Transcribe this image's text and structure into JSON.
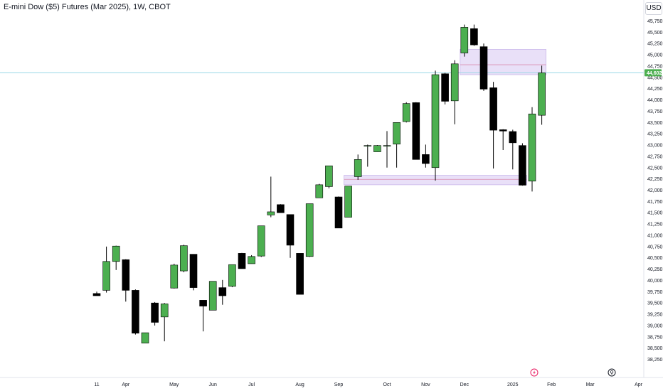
{
  "header": {
    "title": "E-mini Dow ($5) Futures (Mar 2025), 1W, CBOT",
    "currency": "USD"
  },
  "colors": {
    "up": "#4caf50",
    "down": "#000000",
    "wick": "#000000",
    "zone_fill": "#e1d5f5",
    "zone_stroke": "#c9b6ea",
    "zone_mid": "#d98db0",
    "price_line": "#9ad7e6",
    "price_label_bg": "#4caf50"
  },
  "icons": {
    "lightning": "lightning-icon",
    "bulb": "bulb-icon"
  },
  "chart_data": {
    "type": "candlestick",
    "ylim": [
      38250,
      45900
    ],
    "y_ticks": [
      "45,750",
      "45,500",
      "45,250",
      "45,000",
      "44,750",
      "44,500",
      "44,250",
      "44,000",
      "43,750",
      "43,500",
      "43,250",
      "43,000",
      "42,750",
      "42,500",
      "42,250",
      "42,000",
      "41,750",
      "41,500",
      "41,250",
      "41,000",
      "40,750",
      "40,500",
      "40,250",
      "40,000",
      "39,750",
      "39,500",
      "39,250",
      "39,000",
      "38,750",
      "38,500",
      "38,250"
    ],
    "x_labels": [
      {
        "label": "11",
        "index": 0
      },
      {
        "label": "Apr",
        "index": 3
      },
      {
        "label": "May",
        "index": 8
      },
      {
        "label": "Jun",
        "index": 12
      },
      {
        "label": "Jul",
        "index": 16
      },
      {
        "label": "Aug",
        "index": 21
      },
      {
        "label": "Sep",
        "index": 25
      },
      {
        "label": "Oct",
        "index": 30
      },
      {
        "label": "Nov",
        "index": 34
      },
      {
        "label": "Dec",
        "index": 38
      },
      {
        "label": "2025",
        "index": 43
      },
      {
        "label": "Feb",
        "index": 47
      },
      {
        "label": "Mar",
        "index": 51
      },
      {
        "label": "Apr",
        "index": 56
      }
    ],
    "current_price": "44,602",
    "current_price_value": 44602,
    "candles": [
      {
        "o": 39710,
        "h": 39750,
        "l": 39670,
        "c": 39660
      },
      {
        "o": 39780,
        "h": 40750,
        "l": 39730,
        "c": 40420
      },
      {
        "o": 40420,
        "h": 40770,
        "l": 40230,
        "c": 40760
      },
      {
        "o": 40460,
        "h": 40470,
        "l": 39530,
        "c": 39780
      },
      {
        "o": 39780,
        "h": 39800,
        "l": 38800,
        "c": 38830
      },
      {
        "o": 38610,
        "h": 38840,
        "l": 38610,
        "c": 38840
      },
      {
        "o": 39500,
        "h": 39520,
        "l": 39000,
        "c": 39070
      },
      {
        "o": 39190,
        "h": 39500,
        "l": 38650,
        "c": 39480
      },
      {
        "o": 39830,
        "h": 40370,
        "l": 39820,
        "c": 40340
      },
      {
        "o": 40210,
        "h": 40790,
        "l": 40180,
        "c": 40770
      },
      {
        "o": 40580,
        "h": 40580,
        "l": 39780,
        "c": 39840
      },
      {
        "o": 39560,
        "h": 39560,
        "l": 38870,
        "c": 39430
      },
      {
        "o": 39340,
        "h": 39980,
        "l": 39340,
        "c": 39980
      },
      {
        "o": 39840,
        "h": 40010,
        "l": 39460,
        "c": 39660
      },
      {
        "o": 39870,
        "h": 40350,
        "l": 39850,
        "c": 40350
      },
      {
        "o": 40600,
        "h": 40610,
        "l": 40260,
        "c": 40260
      },
      {
        "o": 40370,
        "h": 40560,
        "l": 40370,
        "c": 40530
      },
      {
        "o": 40540,
        "h": 41210,
        "l": 40520,
        "c": 41210
      },
      {
        "o": 41450,
        "h": 42300,
        "l": 41400,
        "c": 41520
      },
      {
        "o": 41680,
        "h": 41690,
        "l": 41510,
        "c": 41500
      },
      {
        "o": 41460,
        "h": 41460,
        "l": 40500,
        "c": 40780
      },
      {
        "o": 40600,
        "h": 40600,
        "l": 39690,
        "c": 39690
      },
      {
        "o": 40530,
        "h": 41700,
        "l": 40520,
        "c": 41700
      },
      {
        "o": 41830,
        "h": 42140,
        "l": 41830,
        "c": 42120
      },
      {
        "o": 42080,
        "h": 42540,
        "l": 42040,
        "c": 42540
      },
      {
        "o": 41850,
        "h": 41860,
        "l": 41160,
        "c": 41160
      },
      {
        "o": 41400,
        "h": 42090,
        "l": 41400,
        "c": 42090
      },
      {
        "o": 42300,
        "h": 42790,
        "l": 42230,
        "c": 42680
      },
      {
        "o": 42990,
        "h": 43010,
        "l": 42520,
        "c": 42990
      },
      {
        "o": 42850,
        "h": 43000,
        "l": 42850,
        "c": 42990
      },
      {
        "o": 42990,
        "h": 43310,
        "l": 42500,
        "c": 42990
      },
      {
        "o": 43020,
        "h": 43500,
        "l": 42500,
        "c": 43500
      },
      {
        "o": 43520,
        "h": 43950,
        "l": 43500,
        "c": 43920
      },
      {
        "o": 43940,
        "h": 43950,
        "l": 42680,
        "c": 42680
      },
      {
        "o": 42790,
        "h": 43010,
        "l": 42500,
        "c": 42590
      },
      {
        "o": 42500,
        "h": 44650,
        "l": 42210,
        "c": 44560
      },
      {
        "o": 44580,
        "h": 44600,
        "l": 43900,
        "c": 43970
      },
      {
        "o": 43980,
        "h": 44880,
        "l": 43460,
        "c": 44800
      },
      {
        "o": 45040,
        "h": 45670,
        "l": 44960,
        "c": 45610
      },
      {
        "o": 45580,
        "h": 45670,
        "l": 45200,
        "c": 45220
      },
      {
        "o": 45180,
        "h": 45250,
        "l": 44200,
        "c": 44240
      },
      {
        "o": 44270,
        "h": 44400,
        "l": 42480,
        "c": 43330
      },
      {
        "o": 43340,
        "h": 43350,
        "l": 42890,
        "c": 43310
      },
      {
        "o": 43300,
        "h": 43340,
        "l": 42460,
        "c": 43050
      },
      {
        "o": 42990,
        "h": 43040,
        "l": 42100,
        "c": 42110
      },
      {
        "o": 42200,
        "h": 43840,
        "l": 41970,
        "c": 43690
      },
      {
        "o": 43660,
        "h": 44760,
        "l": 43450,
        "c": 44600
      }
    ],
    "zones": [
      {
        "from_index": 38,
        "to_index": 46,
        "top": 45120,
        "bottom": 44560,
        "mid": 44780
      },
      {
        "from_index": 26,
        "to_index": 44,
        "top": 42330,
        "bottom": 42120,
        "mid": 42240
      }
    ]
  }
}
